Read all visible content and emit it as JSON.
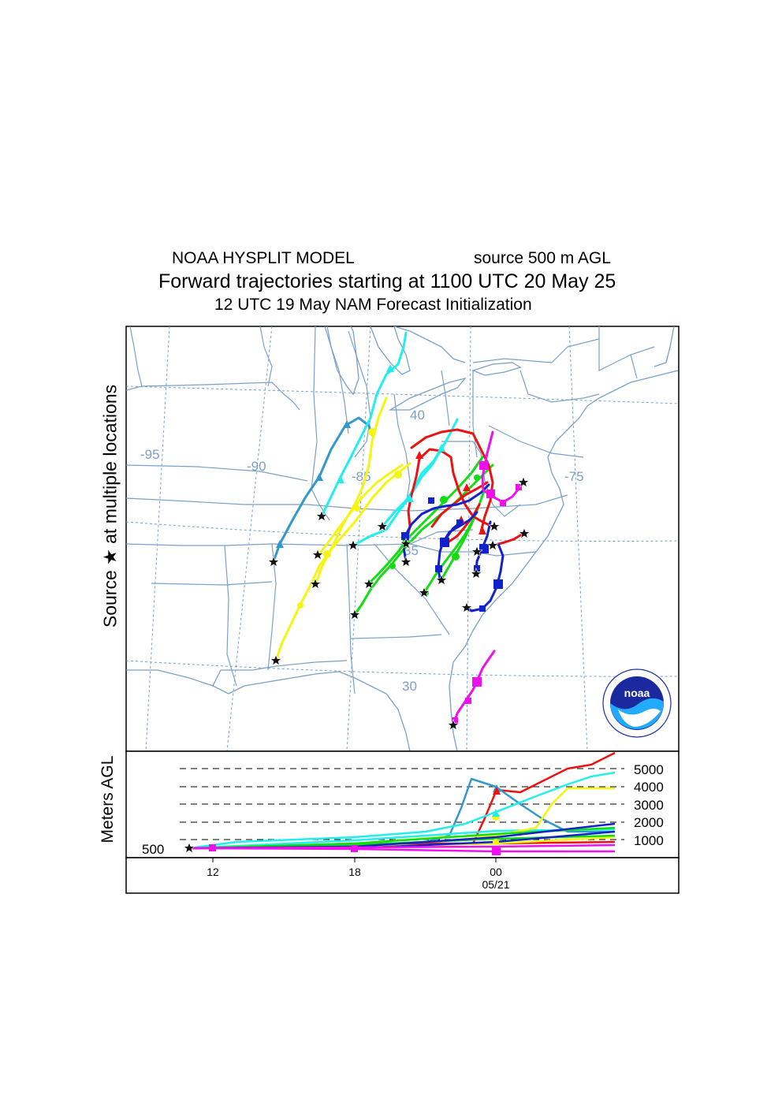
{
  "header": {
    "model": "NOAA HYSPLIT MODEL",
    "source": "source 500 m AGL",
    "title": "Forward trajectories starting at 1100 UTC 20 May 25",
    "subtitle": "12 UTC 19 May    NAM   Forecast Initialization"
  },
  "side_label": "Source ★  at multiple locations",
  "map": {
    "lon_labels": [
      "-95",
      "-90",
      "-85",
      "-75"
    ],
    "lat_labels": [
      "40",
      "35",
      "30"
    ],
    "logo_text": "noaa",
    "logo_ring_text": "NATIONAL OCEANIC AND ATMOSPHERIC ADMINISTRATION · U.S. DEPARTMENT OF COMMERCE"
  },
  "height_panel": {
    "ylabel": "Meters AGL",
    "start_level": "500",
    "levels": [
      "5000",
      "4000",
      "3000",
      "2000",
      "1000"
    ],
    "time_ticks": [
      "12",
      "18",
      "00"
    ],
    "date_label": "05/21"
  },
  "colors": {
    "map_lines": "#7aa0c8",
    "red": "#ee1111",
    "blue": "#1122cc",
    "green": "#11dd11",
    "cyan": "#22eeee",
    "yellow": "#f5f511",
    "magenta": "#ee11ee",
    "steelblue": "#3399cc",
    "noaa_blue": "#1a2a9e",
    "noaa_cyan": "#22aaff"
  }
}
